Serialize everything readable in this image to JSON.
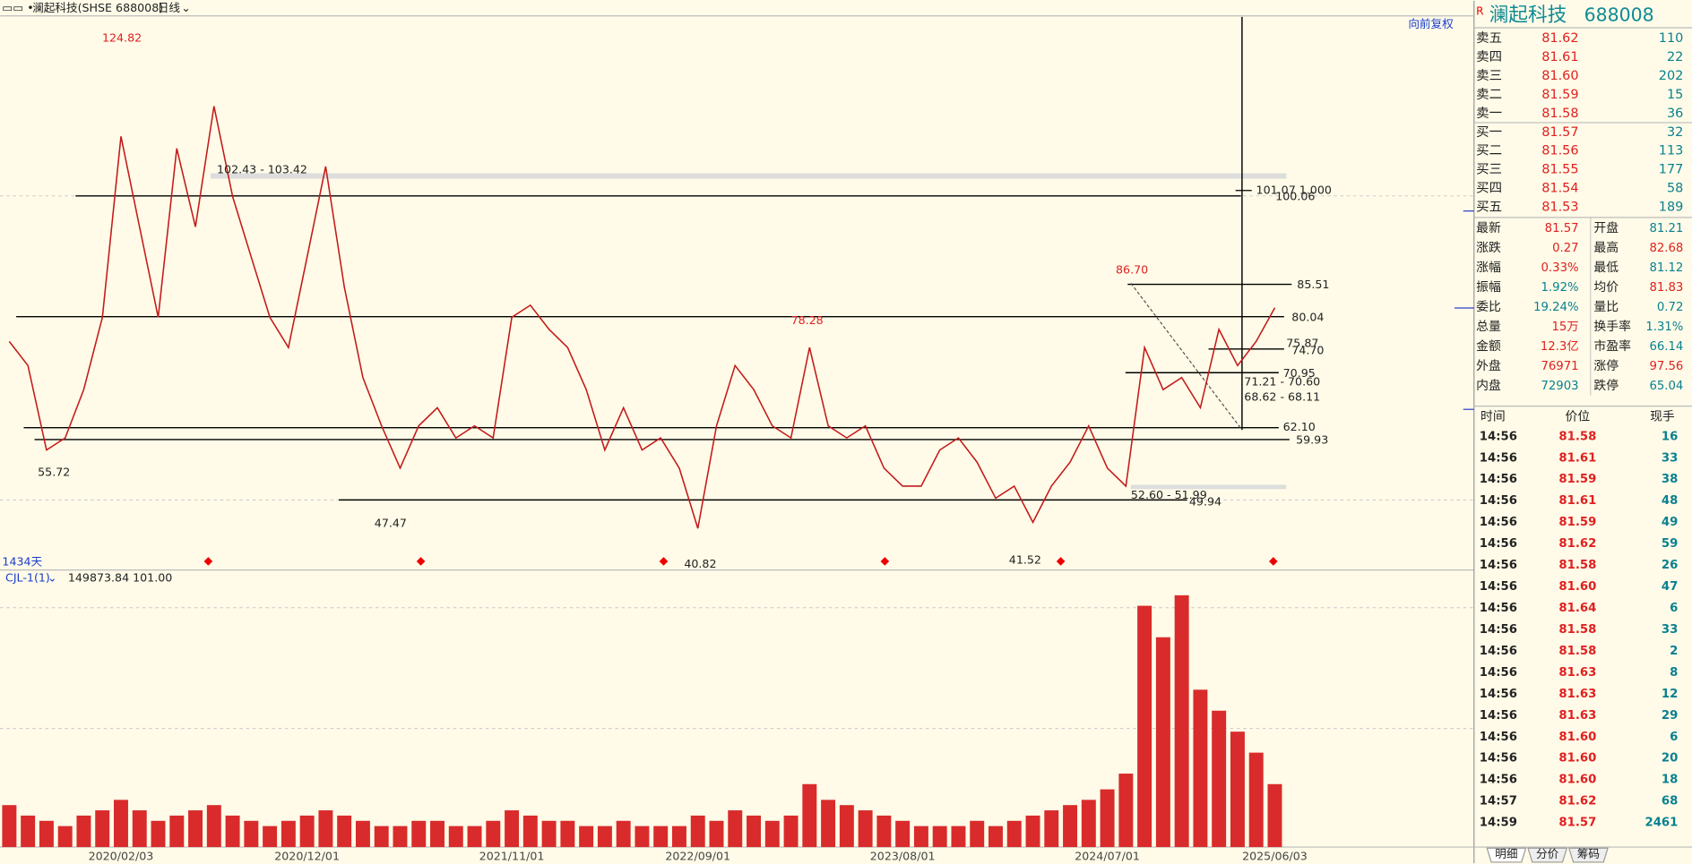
{
  "header": {
    "title": "澜起科技(SHSE 688008)",
    "period": "日线",
    "adjust": "向前复权",
    "days": "1434天"
  },
  "indicator": {
    "name": "CJL-1(1)",
    "value1": "149873.84",
    "value2": "101.00"
  },
  "chart_data": [
    {
      "type": "line",
      "values": [
        76,
        72,
        58,
        60,
        68,
        80,
        110,
        95,
        80,
        108,
        95,
        115,
        100,
        90,
        80,
        75,
        90,
        105,
        85,
        70,
        62,
        55,
        62,
        65,
        60,
        62,
        60,
        80,
        82,
        78,
        75,
        68,
        58,
        65,
        58,
        60,
        55,
        45,
        62,
        72,
        68,
        62,
        60,
        75,
        62,
        60,
        62,
        55,
        52,
        52,
        58,
        60,
        56,
        50,
        52,
        46,
        52,
        56,
        62,
        55,
        52,
        75,
        68,
        70,
        65,
        78,
        72,
        76,
        81.57
      ],
      "color": "#c41a1a",
      "ylim": [
        38.1,
        129.8
      ],
      "annotations": [
        "124.82",
        "55.72",
        "47.47",
        "40.82",
        "78.28",
        "41.52",
        "86.70",
        "102.43 - 103.42",
        "101.07 1.000",
        "100.06",
        "85.51",
        "80.04",
        "75.87",
        "74.70",
        "70.95",
        "71.21 - 70.60",
        "68.62 - 68.11",
        "62.10",
        "59.93",
        "52.60 - 51.99",
        "49.94"
      ]
    },
    {
      "type": "bar",
      "categories": [
        null,
        null,
        null,
        null,
        null,
        null,
        "2020/02/03",
        null,
        null,
        null,
        null,
        null,
        null,
        null,
        null,
        null,
        "2020/12/01",
        null,
        null,
        null,
        null,
        null,
        null,
        null,
        null,
        null,
        null,
        "2021/11/01",
        null,
        null,
        null,
        null,
        null,
        null,
        null,
        null,
        null,
        "2022/09/01",
        null,
        null,
        null,
        null,
        null,
        null,
        null,
        null,
        null,
        null,
        "2023/08/01",
        null,
        null,
        null,
        null,
        null,
        null,
        null,
        null,
        null,
        null,
        "2024/07/01",
        null,
        null,
        null,
        null,
        null,
        null,
        null,
        null,
        "2025/06/03"
      ],
      "values": [
        40000,
        30000,
        25000,
        20000,
        30000,
        35000,
        45000,
        35000,
        25000,
        30000,
        35000,
        40000,
        30000,
        25000,
        20000,
        25000,
        30000,
        35000,
        30000,
        25000,
        20000,
        20000,
        25000,
        25000,
        20000,
        20000,
        25000,
        35000,
        30000,
        25000,
        25000,
        20000,
        20000,
        25000,
        20000,
        20000,
        20000,
        30000,
        25000,
        35000,
        30000,
        25000,
        30000,
        60000,
        45000,
        40000,
        35000,
        30000,
        25000,
        20000,
        20000,
        20000,
        25000,
        20000,
        25000,
        30000,
        35000,
        40000,
        45000,
        55000,
        70000,
        230000,
        200000,
        240000,
        150000,
        130000,
        110000,
        90000,
        60000
      ],
      "color": "#d92b2b",
      "ylim": [
        0,
        260000
      ]
    }
  ],
  "quote": {
    "badge": "R",
    "name": "澜起科技",
    "code": "688008",
    "order_book": [
      [
        "卖五",
        "81.62",
        "110"
      ],
      [
        "卖四",
        "81.61",
        "22"
      ],
      [
        "卖三",
        "81.60",
        "202"
      ],
      [
        "卖二",
        "81.59",
        "15"
      ],
      [
        "卖一",
        "81.58",
        "36"
      ],
      [
        "买一",
        "81.57",
        "32"
      ],
      [
        "买二",
        "81.56",
        "113"
      ],
      [
        "买三",
        "81.55",
        "177"
      ],
      [
        "买四",
        "81.54",
        "58"
      ],
      [
        "买五",
        "81.53",
        "189"
      ]
    ],
    "stats": [
      [
        "最新",
        "81.57",
        "开盘",
        "81.21"
      ],
      [
        "涨跌",
        "0.27",
        "最高",
        "82.68"
      ],
      [
        "涨幅",
        "0.33%",
        "最低",
        "81.12"
      ],
      [
        "振幅",
        "1.92%",
        "均价",
        "81.83"
      ],
      [
        "委比",
        "19.24%",
        "量比",
        "0.72"
      ],
      [
        "总量",
        "15万",
        "换手率",
        "1.31%"
      ],
      [
        "金额",
        "12.3亿",
        "市盈率",
        "66.14"
      ],
      [
        "外盘",
        "76971",
        "涨停",
        "97.56"
      ],
      [
        "内盘",
        "72903",
        "跌停",
        "65.04"
      ]
    ],
    "trade_header": [
      "时间",
      "价位",
      "现手"
    ],
    "trades": [
      [
        "14:56",
        "81.58",
        "16"
      ],
      [
        "14:56",
        "81.61",
        "33"
      ],
      [
        "14:56",
        "81.59",
        "38"
      ],
      [
        "14:56",
        "81.61",
        "48"
      ],
      [
        "14:56",
        "81.59",
        "49"
      ],
      [
        "14:56",
        "81.62",
        "59"
      ],
      [
        "14:56",
        "81.58",
        "26"
      ],
      [
        "14:56",
        "81.60",
        "47"
      ],
      [
        "14:56",
        "81.64",
        "6"
      ],
      [
        "14:56",
        "81.58",
        "33"
      ],
      [
        "14:56",
        "81.58",
        "2"
      ],
      [
        "14:56",
        "81.63",
        "8"
      ],
      [
        "14:56",
        "81.63",
        "12"
      ],
      [
        "14:56",
        "81.63",
        "29"
      ],
      [
        "14:56",
        "81.60",
        "6"
      ],
      [
        "14:56",
        "81.60",
        "20"
      ],
      [
        "14:56",
        "81.60",
        "18"
      ],
      [
        "14:57",
        "81.62",
        "68"
      ],
      [
        "14:59",
        "81.57",
        "2461"
      ]
    ],
    "tabs": [
      "明细",
      "分价",
      "筹码"
    ]
  }
}
